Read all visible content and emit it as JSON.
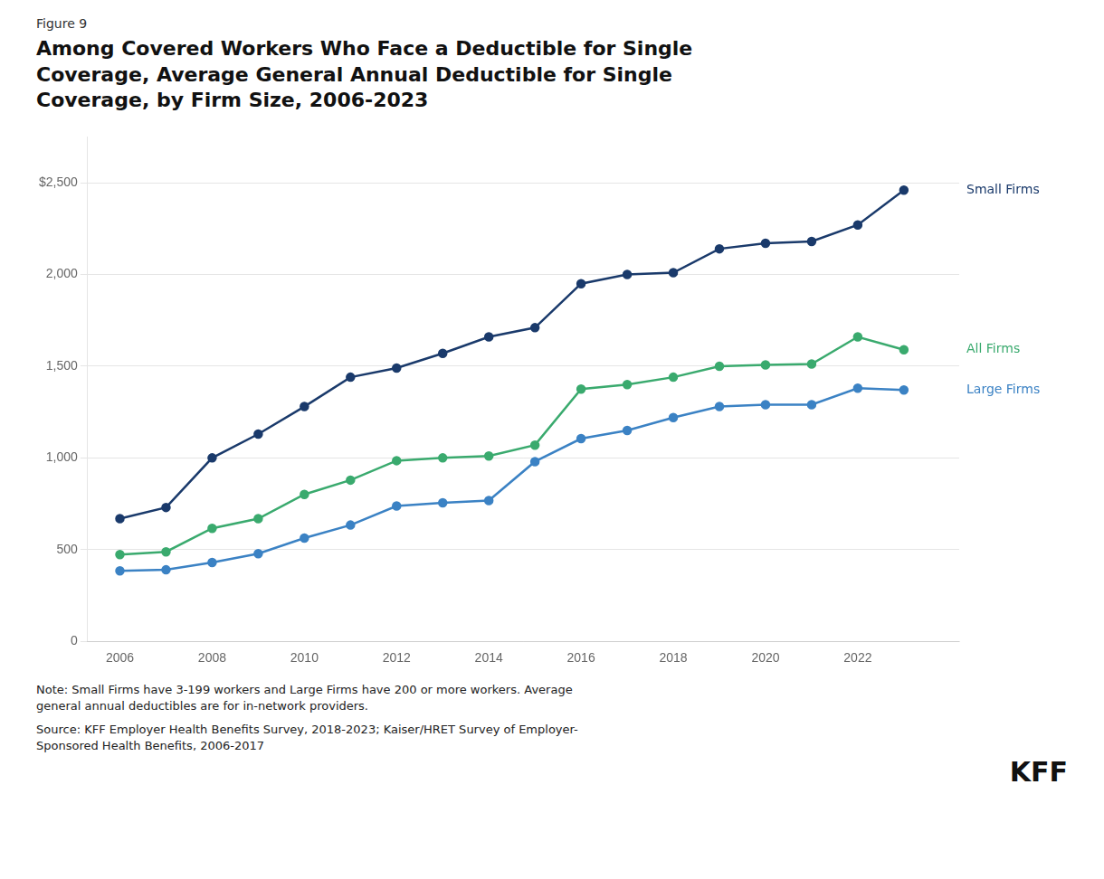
{
  "chart_data": {
    "type": "line",
    "title": "Among Covered Workers Who Face a Deductible for Single\nCoverage, Average General Annual Deductible for Single\nCoverage, by Firm Size, 2006-2023",
    "annotations": [
      "Figure 9",
      "Note: Small Firms have 3-199 workers and Large Firms have 200 or more workers. Average\ngeneral annual deductibles are for in-network providers.",
      "Source: KFF Employer Health Benefits Survey, 2018-2023; Kaiser/HRET Survey of Employer-\nSponsored Health Benefits, 2006-2017",
      "KFF"
    ],
    "x": [
      2006,
      2007,
      2008,
      2009,
      2010,
      2011,
      2012,
      2013,
      2014,
      2015,
      2016,
      2017,
      2018,
      2019,
      2020,
      2021,
      2022,
      2023
    ],
    "series": [
      {
        "name": "Small Firms",
        "color": "#1a3a6b",
        "marker": "circle",
        "line_style": "solid",
        "values": [
          669,
          730,
          1000,
          1130,
          1280,
          1440,
          1490,
          1570,
          1660,
          1710,
          1950,
          2000,
          2010,
          2140,
          2170,
          2180,
          2270,
          2460
        ]
      },
      {
        "name": "All Firms",
        "color": "#3aaa6e",
        "marker": "circle",
        "line_style": "solid",
        "values": [
          473,
          488,
          616,
          669,
          801,
          879,
          985,
          1000,
          1010,
          1070,
          1375,
          1400,
          1440,
          1500,
          1507,
          1512,
          1660,
          1590
        ]
      },
      {
        "name": "Large Firms",
        "color": "#3b82c4",
        "marker": "circle",
        "line_style": "solid",
        "values": [
          384,
          390,
          430,
          478,
          563,
          634,
          738,
          755,
          768,
          980,
          1105,
          1150,
          1220,
          1280,
          1290,
          1290,
          1380,
          1370
        ]
      }
    ],
    "xlim": [
      2005.3,
      2024.2
    ],
    "xticks": [
      2006,
      2008,
      2010,
      2012,
      2014,
      2016,
      2018,
      2020,
      2022
    ],
    "ylim": [
      0,
      2750
    ],
    "yticks": [
      0,
      500,
      {
        "value": 1000,
        "label": "1,000"
      },
      {
        "value": 1500,
        "label": "1,500"
      },
      {
        "value": 2000,
        "label": "2,000"
      },
      {
        "value": 2500,
        "label": "$2,500"
      }
    ],
    "grid": "y"
  }
}
